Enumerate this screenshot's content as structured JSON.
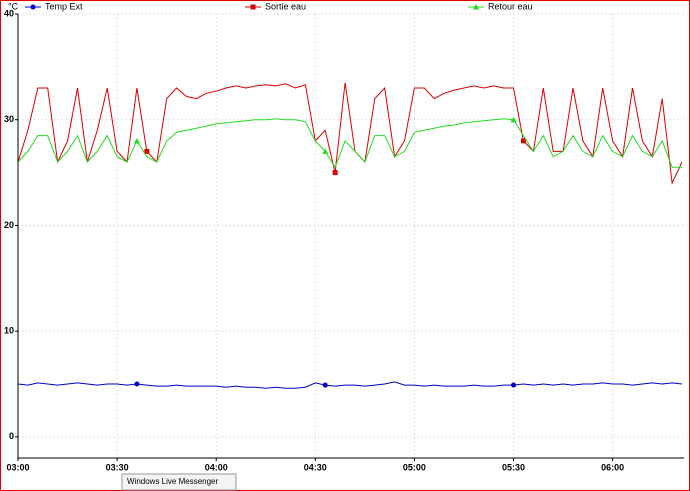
{
  "chart_data": {
    "type": "line",
    "y_unit_label": "°C",
    "x": [
      3.0,
      3.05,
      3.1,
      3.15,
      3.2,
      3.25,
      3.3,
      3.35,
      3.4,
      3.45,
      3.5,
      3.55,
      3.6,
      3.65,
      3.7,
      3.75,
      3.8,
      3.85,
      3.9,
      3.95,
      4.0,
      4.05,
      4.1,
      4.15,
      4.2,
      4.25,
      4.3,
      4.35,
      4.4,
      4.45,
      4.5,
      4.55,
      4.6,
      4.65,
      4.7,
      4.75,
      4.8,
      4.85,
      4.9,
      4.95,
      5.0,
      5.05,
      5.1,
      5.15,
      5.2,
      5.25,
      5.3,
      5.35,
      5.4,
      5.45,
      5.5,
      5.55,
      5.6,
      5.65,
      5.7,
      5.75,
      5.8,
      5.85,
      5.9,
      5.95,
      6.0,
      6.05,
      6.1,
      6.15,
      6.2,
      6.25,
      6.3,
      6.35
    ],
    "series": [
      {
        "name": "Temp Ext",
        "color": "#0000cc",
        "marker": "circle",
        "values": [
          5.0,
          4.9,
          5.1,
          5.0,
          4.9,
          5.0,
          5.1,
          5.0,
          4.9,
          5.0,
          5.0,
          4.9,
          5.0,
          4.9,
          4.8,
          4.8,
          4.9,
          4.8,
          4.8,
          4.8,
          4.8,
          4.7,
          4.8,
          4.7,
          4.7,
          4.6,
          4.7,
          4.6,
          4.6,
          4.7,
          5.1,
          4.9,
          4.8,
          4.9,
          4.9,
          4.8,
          4.9,
          5.0,
          5.2,
          4.9,
          4.9,
          4.8,
          4.9,
          4.8,
          4.8,
          4.8,
          4.9,
          4.8,
          4.8,
          4.9,
          4.9,
          5.0,
          4.9,
          5.0,
          4.9,
          5.0,
          4.9,
          5.0,
          5.0,
          5.1,
          5.0,
          5.0,
          4.9,
          5.0,
          5.1,
          5.0,
          5.1,
          5.0
        ]
      },
      {
        "name": "Sortie eau",
        "color": "#dd0000",
        "marker": "square",
        "values": [
          26,
          29,
          33,
          33,
          26,
          28,
          33,
          26,
          29,
          33,
          27,
          26,
          33,
          27,
          26,
          32,
          33,
          32.2,
          32,
          32.5,
          32.7,
          33,
          33.2,
          33,
          33.2,
          33.3,
          33.2,
          33.4,
          33,
          33.3,
          28,
          29,
          25,
          33.5,
          27,
          26,
          32,
          33,
          26.5,
          28,
          33,
          33,
          32,
          32.5,
          32.8,
          33,
          33.2,
          33,
          33.2,
          33,
          33,
          28,
          27,
          33,
          27,
          27,
          33,
          28,
          26.5,
          33,
          28,
          26.5,
          33,
          28,
          26.5,
          32,
          24,
          26
        ]
      },
      {
        "name": "Retour eau",
        "color": "#22dd22",
        "marker": "triangle",
        "values": [
          26,
          27,
          28.5,
          28.5,
          26,
          27,
          28.5,
          26,
          27,
          28.5,
          26.5,
          26,
          28,
          26.5,
          26,
          28,
          28.8,
          29,
          29.2,
          29.4,
          29.6,
          29.7,
          29.8,
          29.9,
          30,
          30,
          30.1,
          30,
          30,
          29.8,
          28,
          27,
          25.5,
          28,
          27,
          26,
          28.5,
          28.5,
          26.5,
          27,
          28.8,
          29,
          29.2,
          29.4,
          29.5,
          29.7,
          29.8,
          29.9,
          30,
          30.1,
          30,
          28.5,
          27,
          28.5,
          26.5,
          27,
          28.5,
          27,
          26.5,
          28.5,
          27,
          26.5,
          28.5,
          27,
          26.5,
          28,
          25.5,
          25.5
        ]
      }
    ],
    "xlim": [
      3,
      6.36
    ],
    "xticks": [
      {
        "value": 3,
        "label": "03:00"
      },
      {
        "value": 3.5,
        "label": "03:30"
      },
      {
        "value": 4,
        "label": "04:00"
      },
      {
        "value": 4.5,
        "label": "04:30"
      },
      {
        "value": 5,
        "label": "05:00"
      },
      {
        "value": 5.5,
        "label": "05:30"
      },
      {
        "value": 6,
        "label": "06:00"
      }
    ],
    "ylim": [
      -2,
      40
    ],
    "yticks": [
      0,
      10,
      20,
      30,
      40
    ],
    "grid": true,
    "legend": "top"
  },
  "taskbar_tooltip": "Windows Live Messenger"
}
